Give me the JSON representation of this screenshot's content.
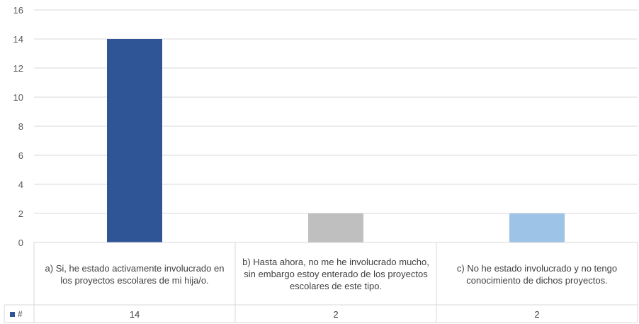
{
  "chart_data": {
    "type": "bar",
    "categories": [
      "a) Si, he estado activamente involucrado en los proyectos escolares de mi hija/o.",
      "b) Hasta ahora, no me he involucrado mucho, sin embargo estoy enterado de los proyectos escolares de este tipo.",
      "c) No he estado involucrado y no tengo conocimiento de dichos proyectos."
    ],
    "series": [
      {
        "name": "#",
        "values": [
          14,
          2,
          2
        ]
      }
    ],
    "bar_colors": [
      "#2f5597",
      "#bfbfbf",
      "#9dc3e6"
    ],
    "legend_color": "#2f5597",
    "ylim": [
      0,
      16
    ],
    "yticks": [
      "0",
      "2",
      "4",
      "6",
      "8",
      "10",
      "12",
      "14",
      "16"
    ],
    "grid": true,
    "data_table": true,
    "table_values": [
      "14",
      "2",
      "2"
    ]
  }
}
